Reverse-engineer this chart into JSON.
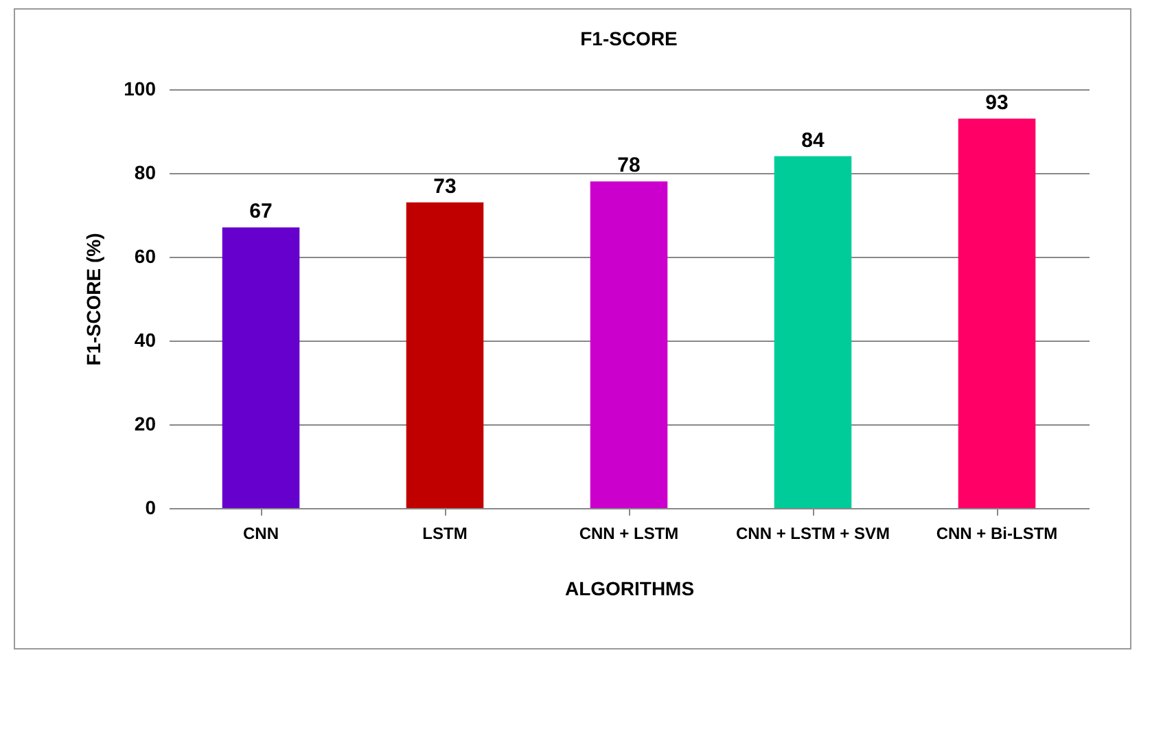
{
  "chart_data": {
    "type": "bar",
    "title": "F1-SCORE",
    "xlabel": "ALGORITHMS",
    "ylabel": "F1-SCORE (%)",
    "categories": [
      "CNN",
      "LSTM",
      "CNN + LSTM",
      "CNN + LSTM + SVM",
      "CNN + Bi-LSTM"
    ],
    "values": [
      67,
      73,
      78,
      84,
      93
    ],
    "colors": [
      "#6600cc",
      "#c00000",
      "#cc00cc",
      "#00cc99",
      "#ff0066"
    ],
    "ylim": [
      0,
      100
    ],
    "yticks": [
      0,
      20,
      40,
      60,
      80,
      100
    ],
    "grid": "y",
    "data_labels": true
  }
}
